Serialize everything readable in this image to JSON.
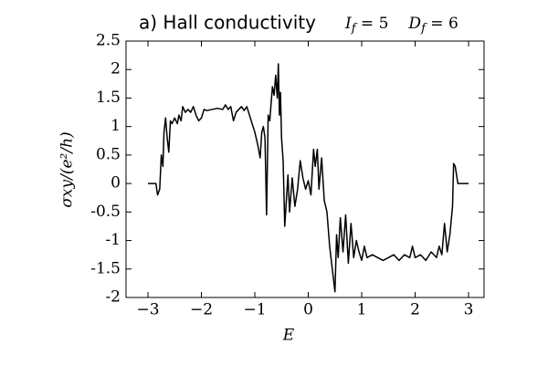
{
  "chart_data": {
    "type": "line",
    "title": "a) Hall conductivity",
    "title_params": [
      {
        "symbol": "I",
        "subscript": "f",
        "value": 5
      },
      {
        "symbol": "D",
        "subscript": "f",
        "value": 6
      }
    ],
    "xlabel": "E",
    "ylabel": "σxy/(e²/h)",
    "xlim": [
      -3.41,
      3.29
    ],
    "ylim": [
      -2,
      2.5
    ],
    "xticks": [
      {
        "value": -3,
        "label": "−3"
      },
      {
        "value": -2,
        "label": "−2"
      },
      {
        "value": -1,
        "label": "−1"
      },
      0,
      1,
      2,
      3
    ],
    "yticks": [
      -2,
      -1.5,
      -1,
      -0.5,
      0,
      0.5,
      1,
      1.5,
      2,
      2.5
    ],
    "grid": false,
    "series": [
      {
        "color": "#000000",
        "x": [
          -3.0,
          -2.85,
          -2.82,
          -2.78,
          -2.75,
          -2.72,
          -2.7,
          -2.67,
          -2.64,
          -2.61,
          -2.58,
          -2.55,
          -2.5,
          -2.45,
          -2.42,
          -2.38,
          -2.35,
          -2.3,
          -2.25,
          -2.2,
          -2.15,
          -2.1,
          -2.05,
          -2.0,
          -1.95,
          -1.9,
          -1.8,
          -1.7,
          -1.6,
          -1.55,
          -1.5,
          -1.45,
          -1.4,
          -1.35,
          -1.3,
          -1.25,
          -1.2,
          -1.15,
          -1.1,
          -1.05,
          -1.0,
          -0.95,
          -0.9,
          -0.87,
          -0.84,
          -0.81,
          -0.78,
          -0.75,
          -0.72,
          -0.7,
          -0.67,
          -0.64,
          -0.61,
          -0.58,
          -0.56,
          -0.54,
          -0.52,
          -0.5,
          -0.47,
          -0.44,
          -0.41,
          -0.38,
          -0.35,
          -0.3,
          -0.25,
          -0.2,
          -0.15,
          -0.1,
          -0.05,
          0.0,
          0.05,
          0.1,
          0.13,
          0.17,
          0.2,
          0.25,
          0.3,
          0.35,
          0.4,
          0.45,
          0.5,
          0.53,
          0.56,
          0.6,
          0.65,
          0.7,
          0.75,
          0.8,
          0.85,
          0.9,
          0.95,
          1.0,
          1.05,
          1.1,
          1.2,
          1.3,
          1.4,
          1.5,
          1.6,
          1.7,
          1.8,
          1.9,
          1.95,
          2.0,
          2.1,
          2.2,
          2.3,
          2.4,
          2.45,
          2.5,
          2.55,
          2.6,
          2.65,
          2.7,
          2.72,
          2.75,
          2.8,
          3.0
        ],
        "values": [
          0,
          0,
          -0.2,
          -0.1,
          0.5,
          0.3,
          0.9,
          1.15,
          0.8,
          0.55,
          1.1,
          1.05,
          1.15,
          1.05,
          1.2,
          1.1,
          1.35,
          1.25,
          1.3,
          1.25,
          1.35,
          1.2,
          1.1,
          1.15,
          1.3,
          1.28,
          1.3,
          1.32,
          1.3,
          1.38,
          1.3,
          1.35,
          1.1,
          1.25,
          1.3,
          1.35,
          1.28,
          1.35,
          1.2,
          1.05,
          0.9,
          0.7,
          0.45,
          0.9,
          1.0,
          0.8,
          -0.55,
          1.2,
          1.1,
          1.35,
          1.7,
          1.55,
          1.9,
          1.5,
          2.1,
          1.2,
          1.6,
          0.8,
          0.4,
          -0.75,
          -0.3,
          0.15,
          -0.5,
          0.1,
          -0.4,
          -0.1,
          0.4,
          0.1,
          -0.1,
          0.05,
          -0.2,
          0.6,
          0.3,
          0.6,
          -0.1,
          0.45,
          -0.3,
          -0.5,
          -1.1,
          -1.5,
          -1.9,
          -0.9,
          -1.3,
          -0.6,
          -1.2,
          -0.55,
          -1.4,
          -0.7,
          -1.3,
          -1.0,
          -1.2,
          -1.35,
          -1.1,
          -1.3,
          -1.25,
          -1.3,
          -1.35,
          -1.3,
          -1.25,
          -1.35,
          -1.25,
          -1.3,
          -1.1,
          -1.3,
          -1.25,
          -1.35,
          -1.2,
          -1.3,
          -1.1,
          -1.25,
          -0.7,
          -1.2,
          -0.9,
          -0.4,
          0.35,
          0.3,
          0,
          0
        ]
      }
    ]
  }
}
